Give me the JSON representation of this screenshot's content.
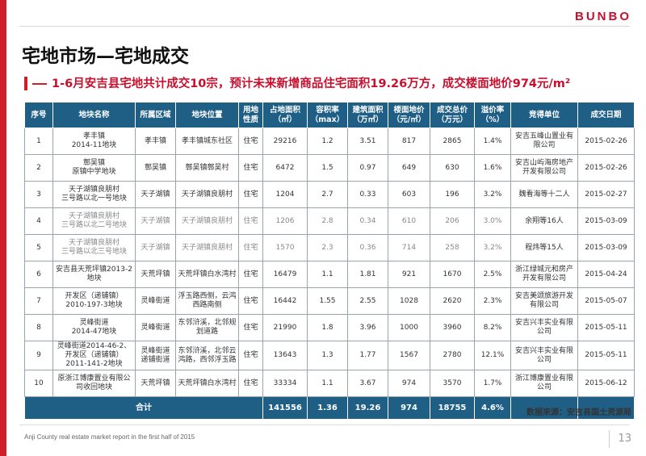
{
  "brand": "BUNBO",
  "page_title": "宅地市场—宅地成交",
  "subtitle": "1-6月安吉县宅地共计成交10宗，预计未来新增商品住宅面积19.26万方，成交楼面地价974元/m²",
  "headers": [
    "序号",
    "地块名称",
    "所属区域",
    "地块位置",
    "用地性质",
    "占地面积（㎡）",
    "容积率（max）",
    "建筑面积（万㎡）",
    "楼面地价（元/㎡）",
    "成交总价（万元）",
    "溢价率（%）",
    "竞得单位",
    "成交日期"
  ],
  "rows": [
    [
      "1",
      "孝丰镇\n2014-11地块",
      "孝丰镇",
      "孝丰镇城东社区",
      "住宅",
      "29216",
      "1.2",
      "3.51",
      "817",
      "2865",
      "1.4%",
      "安吉五峰山置业有限公司",
      "2015-02-26"
    ],
    [
      "2",
      "鄣吴镇\n原镇中学地块",
      "鄣吴镇",
      "鄣吴镇鄣吴村",
      "住宅",
      "6472",
      "1.5",
      "0.97",
      "649",
      "630",
      "1.6%",
      "安吉山屿海房地产开发有限公司",
      "2015-02-26"
    ],
    [
      "3",
      "天子湖镇良朋村\n三号路以北一号地块",
      "天子湖镇",
      "天子湖镇良朋村",
      "住宅",
      "1204",
      "2.7",
      "0.33",
      "603",
      "196",
      "3.2%",
      "魏看海等十二人",
      "2015-02-27"
    ],
    [
      "4",
      "天子湖镇良朋村\n三号路以北二号地块",
      "天子湖镇",
      "天子湖镇良朋村",
      "住宅",
      "1206",
      "2.8",
      "0.34",
      "610",
      "206",
      "3.0%",
      "余翔等16人",
      "2015-03-09"
    ],
    [
      "5",
      "天子湖镇良朋村\n三号路以北三号地块",
      "天子湖镇",
      "天子湖镇良朋村",
      "住宅",
      "1570",
      "2.3",
      "0.36",
      "714",
      "258",
      "3.2%",
      "程炜等15人",
      "2015-03-09"
    ],
    [
      "6",
      "安吉县天荒坪镇2013-2地块",
      "天荒坪镇",
      "天荒坪镇白水湾村",
      "住宅",
      "16479",
      "1.1",
      "1.81",
      "921",
      "1670",
      "2.5%",
      "浙江绿城元和房产开发有限公司",
      "2015-04-24"
    ],
    [
      "7",
      "开发区（递铺镇）\n2010-197-3地块",
      "灵峰街道",
      "浮玉路西侧，云鸿西路南侧",
      "住宅",
      "16442",
      "1.55",
      "2.55",
      "1028",
      "2620",
      "2.3%",
      "安吉美颂旅游开发有限公司",
      "2015-05-07"
    ],
    [
      "8",
      "灵峰街道\n2014-47地块",
      "灵峰街道",
      "东邻浒溪，北邻规划道路",
      "住宅",
      "21990",
      "1.8",
      "3.96",
      "1000",
      "3960",
      "8.2%",
      "安吉兴丰实业有限公司",
      "2015-05-11"
    ],
    [
      "9",
      "灵峰街道2014-46-2、开发区（递铺镇）\n2011-141-2地块",
      "灵峰街道\n递铺街道",
      "东邻浒溪，北邻云鸿路，西邻浮玉路",
      "住宅",
      "13643",
      "1.3",
      "1.77",
      "1567",
      "2780",
      "12.1%",
      "安吉兴丰实业有限公司",
      "2015-05-11"
    ],
    [
      "10",
      "原浙江博康置业有限公司收回地块",
      "天荒坪镇",
      "天荒坪镇白水湾村",
      "住宅",
      "33334",
      "1.1",
      "3.67",
      "974",
      "3570",
      "1.7%",
      "浙江博康置业有限公司",
      "2015-06-12"
    ]
  ],
  "total": {
    "label": "合计",
    "land_area": "141556",
    "far": "1.36",
    "building_area": "19.26",
    "floor_price": "974",
    "total_price": "18755",
    "premium": "4.6%"
  },
  "source": "数据来源：安吉县国土资源局",
  "footer_note": "Anji County real estate market report in the first half of 2015",
  "page_number": "13"
}
